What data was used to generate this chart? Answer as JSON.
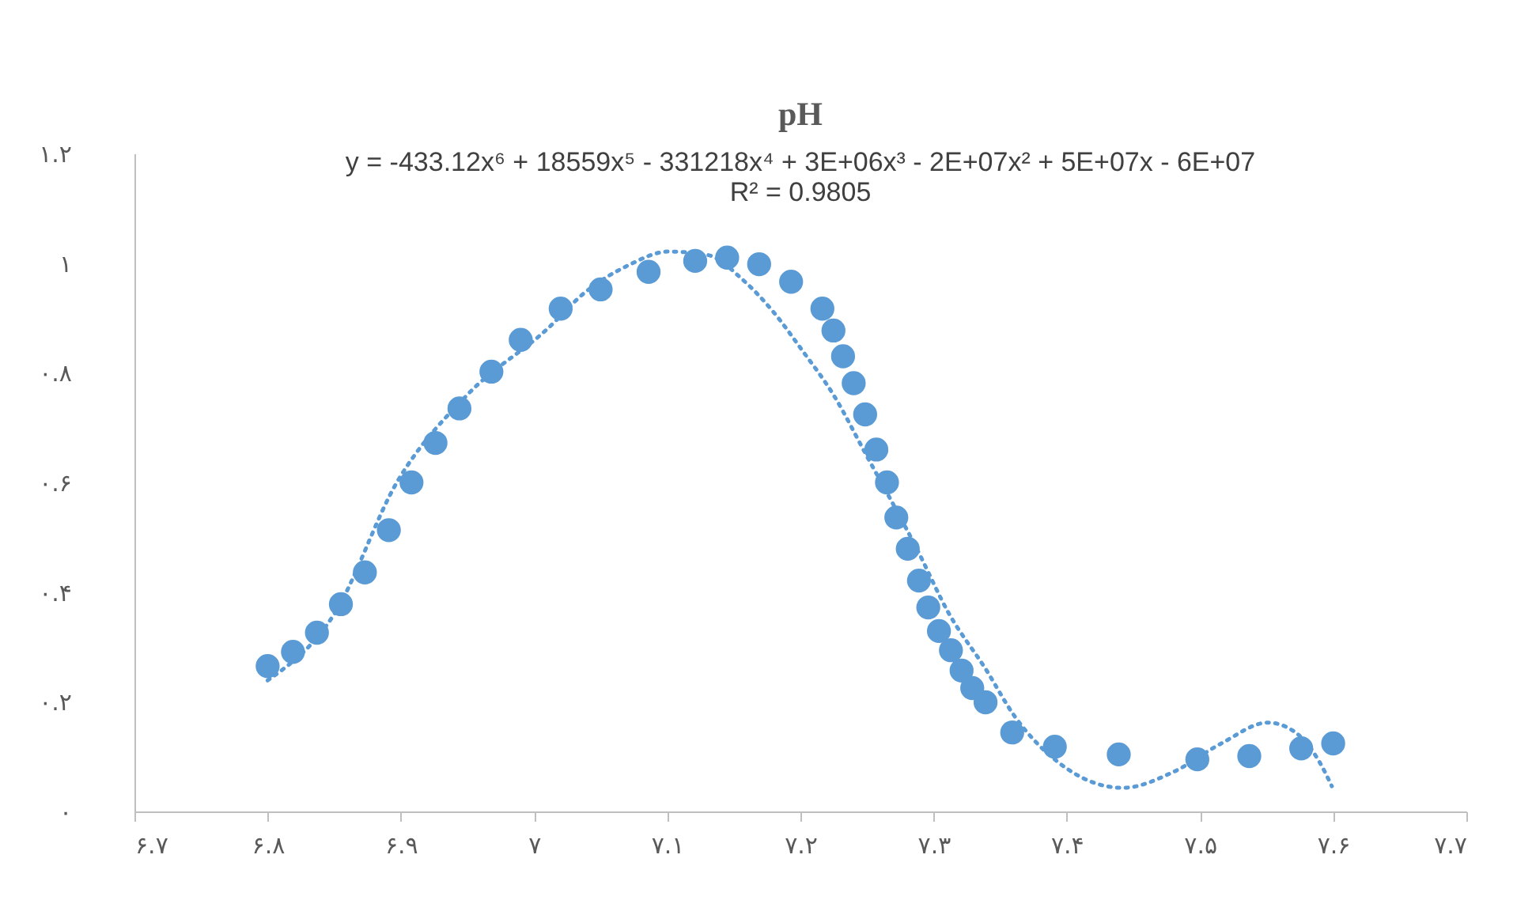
{
  "chart_data": {
    "type": "scatter",
    "title": "pH",
    "annotations": [
      "y = -433.12x⁶ + 18559x⁵ - 331218x⁴ + 3E+06x³ - 2E+07x² + 5E+07x - 6E+07",
      "R² = 0.9805"
    ],
    "grid": false,
    "xlim": [
      6.7,
      7.7
    ],
    "ylim": [
      0,
      1.2
    ],
    "xticks": [
      {
        "value": 6.7,
        "label": "۶.۷"
      },
      {
        "value": 6.8,
        "label": "۶.۸"
      },
      {
        "value": 6.9,
        "label": "۶.۹"
      },
      {
        "value": 7,
        "label": "۷"
      },
      {
        "value": 7.1,
        "label": "۷.۱"
      },
      {
        "value": 7.2,
        "label": "۷.۲"
      },
      {
        "value": 7.3,
        "label": "۷.۳"
      },
      {
        "value": 7.4,
        "label": "۷.۴"
      },
      {
        "value": 7.5,
        "label": "۷.۵"
      },
      {
        "value": 7.6,
        "label": "۷.۶"
      },
      {
        "value": 7.7,
        "label": "۷.۷"
      }
    ],
    "yticks": [
      {
        "value": 0,
        "label": "۰"
      },
      {
        "value": 0.2,
        "label": "۰.۲"
      },
      {
        "value": 0.4,
        "label": "۰.۴"
      },
      {
        "value": 0.6,
        "label": "۰.۶"
      },
      {
        "value": 0.8,
        "label": "۰.۸"
      },
      {
        "value": 1,
        "label": "۱"
      },
      {
        "value": 1.2,
        "label": "۱.۲"
      }
    ],
    "series": [
      {
        "marker": "circle",
        "color": "#5b9bd5",
        "x": [
          6.8,
          6.819,
          6.837,
          6.855,
          6.873,
          6.891,
          6.908,
          6.926,
          6.944,
          6.968,
          6.99,
          7.02,
          7.05,
          7.086,
          7.121,
          7.145,
          7.169,
          7.193,
          7.2165,
          7.2248,
          7.232,
          7.24,
          7.2486,
          7.257,
          7.265,
          7.272,
          7.2806,
          7.289,
          7.296,
          7.304,
          7.313,
          7.321,
          7.329,
          7.339,
          7.359,
          7.391,
          7.439,
          7.498,
          7.537,
          7.576,
          7.6
        ],
        "values": [
          0.265,
          0.291,
          0.326,
          0.378,
          0.436,
          0.513,
          0.6,
          0.672,
          0.735,
          0.802,
          0.86,
          0.917,
          0.952,
          0.984,
          1.004,
          1.01,
          0.998,
          0.966,
          0.917,
          0.877,
          0.83,
          0.781,
          0.724,
          0.66,
          0.6,
          0.536,
          0.479,
          0.421,
          0.372,
          0.329,
          0.294,
          0.257,
          0.225,
          0.199,
          0.144,
          0.118,
          0.104,
          0.095,
          0.101,
          0.115,
          0.124
        ]
      },
      {
        "type": "line",
        "marker": "none",
        "line_style": "dotted",
        "color": "#5b9bd5",
        "x": [
          6.8,
          6.85,
          6.897,
          6.95,
          7.01,
          7.038,
          7.07,
          7.101,
          7.13,
          7.157,
          7.18,
          7.201,
          7.225,
          7.249,
          7.288,
          7.311,
          7.339,
          7.361,
          7.395,
          7.442,
          7.48,
          7.516,
          7.551,
          7.57,
          7.59,
          7.599
        ],
        "values": [
          0.239,
          0.36,
          0.6,
          0.76,
          0.88,
          0.946,
          0.995,
          1.021,
          1.015,
          0.969,
          0.91,
          0.842,
          0.759,
          0.652,
          0.476,
          0.363,
          0.26,
          0.173,
          0.087,
          0.043,
          0.072,
          0.124,
          0.162,
          0.147,
          0.089,
          0.046
        ]
      }
    ]
  }
}
